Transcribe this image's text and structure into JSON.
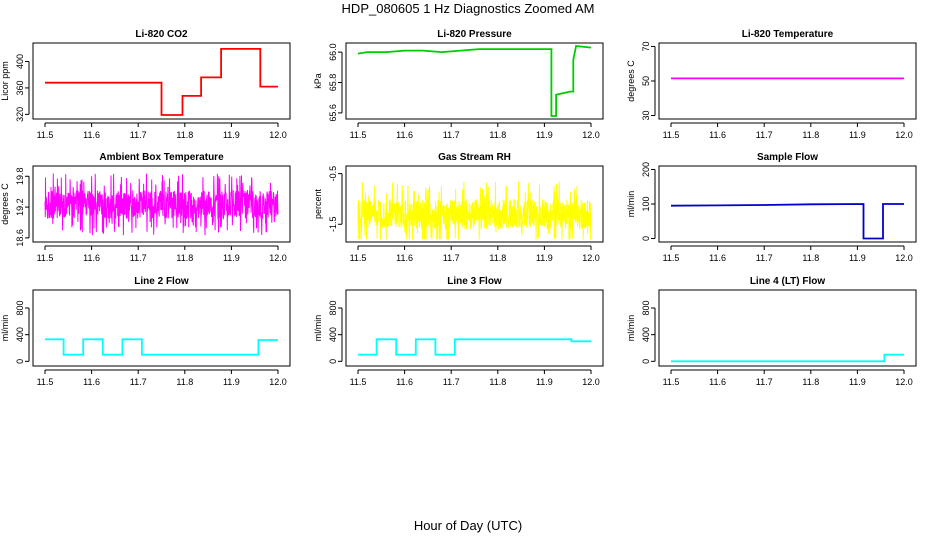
{
  "figure": {
    "title": "HDP_080605  1 Hz Diagnostics Zoomed AM",
    "xlabel": "Hour of Day (UTC)"
  },
  "chart_data": [
    {
      "type": "line",
      "title": "Li-820 CO2",
      "ylabel": "Licor ppm",
      "color": "#ff0000",
      "xlim": [
        11.5,
        12.0
      ],
      "xticks": [
        11.5,
        11.6,
        11.7,
        11.8,
        11.9,
        12.0
      ],
      "xtick_labels": [
        "11.5",
        "11.6",
        "11.7",
        "11.8",
        "11.9",
        "12.0"
      ],
      "ylim": [
        313,
        428
      ],
      "yticks": [
        320,
        360,
        400
      ],
      "ytick_labels": [
        "320",
        "360",
        "400"
      ],
      "x": [
        11.5,
        11.75,
        11.75,
        11.795,
        11.795,
        11.835,
        11.835,
        11.878,
        11.878,
        11.962,
        11.962,
        12.0
      ],
      "y": [
        368,
        368,
        319,
        319,
        348,
        348,
        376,
        376,
        419,
        419,
        362,
        362
      ]
    },
    {
      "type": "line",
      "title": "Li-820 Pressure",
      "ylabel": "kPa",
      "color": "#00cc00",
      "xlim": [
        11.5,
        12.0
      ],
      "xticks": [
        11.5,
        11.6,
        11.7,
        11.8,
        11.9,
        12.0
      ],
      "xtick_labels": [
        "11.5",
        "11.6",
        "11.7",
        "11.8",
        "11.9",
        "12.0"
      ],
      "ylim": [
        65.56,
        66.06
      ],
      "yticks": [
        65.6,
        65.8,
        66.0
      ],
      "ytick_labels": [
        "65.6",
        "65.8",
        "66.0"
      ],
      "x": [
        11.5,
        11.52,
        11.56,
        11.6,
        11.64,
        11.68,
        11.72,
        11.76,
        11.8,
        11.84,
        11.88,
        11.915,
        11.915,
        11.925,
        11.925,
        11.955,
        11.955,
        11.962,
        11.962,
        11.968,
        11.968,
        12.0
      ],
      "y": [
        65.99,
        66.0,
        66.0,
        66.01,
        66.01,
        66.0,
        66.01,
        66.02,
        66.02,
        66.02,
        66.02,
        66.02,
        65.58,
        65.58,
        65.72,
        65.74,
        65.74,
        65.74,
        65.95,
        66.04,
        66.04,
        66.03
      ]
    },
    {
      "type": "line",
      "title": "Li-820 Temperature",
      "ylabel": "degrees C",
      "color": "#ff00ff",
      "xlim": [
        11.5,
        12.0
      ],
      "xticks": [
        11.5,
        11.6,
        11.7,
        11.8,
        11.9,
        12.0
      ],
      "xtick_labels": [
        "11.5",
        "11.6",
        "11.7",
        "11.8",
        "11.9",
        "12.0"
      ],
      "ylim": [
        28,
        72
      ],
      "yticks": [
        30,
        50,
        70
      ],
      "ytick_labels": [
        "30",
        "50",
        "70"
      ],
      "x": [
        11.5,
        12.0
      ],
      "y": [
        51.5,
        51.5
      ]
    },
    {
      "type": "line",
      "title": "Ambient Box Temperature",
      "ylabel": "degrees C",
      "color": "#ff00ff",
      "xlim": [
        11.5,
        12.0
      ],
      "xticks": [
        11.5,
        11.6,
        11.7,
        11.8,
        11.9,
        12.0
      ],
      "xtick_labels": [
        "11.5",
        "11.6",
        "11.7",
        "11.8",
        "11.9",
        "12.0"
      ],
      "ylim": [
        18.52,
        20.0
      ],
      "yticks": [
        18.6,
        19.2,
        19.8
      ],
      "ytick_labels": [
        "18.6",
        "19.2",
        "19.8"
      ],
      "noise": {
        "center": 19.25,
        "low": 18.65,
        "high": 19.95,
        "spread": 0.28
      },
      "x": [
        11.5,
        12.0
      ],
      "y": [
        19.25,
        19.25
      ]
    },
    {
      "type": "line",
      "title": "Gas Stream RH",
      "ylabel": "percent",
      "color": "#ffff00",
      "xlim": [
        11.5,
        12.0
      ],
      "xticks": [
        11.5,
        11.6,
        11.7,
        11.8,
        11.9,
        12.0
      ],
      "xtick_labels": [
        "11.5",
        "11.6",
        "11.7",
        "11.8",
        "11.9",
        "12.0"
      ],
      "ylim": [
        -1.85,
        -0.35
      ],
      "yticks": [
        -0.5,
        -1.5
      ],
      "ytick_labels": [
        "-0.5",
        "-1.5"
      ],
      "noise": {
        "center": -1.3,
        "low": -1.8,
        "high": -0.45,
        "spread": 0.3
      },
      "x": [
        11.5,
        12.0
      ],
      "y": [
        -1.3,
        -1.3
      ]
    },
    {
      "type": "line",
      "title": "Sample Flow",
      "ylabel": "ml/min",
      "color": "#0000cc",
      "xlim": [
        11.5,
        12.0
      ],
      "xticks": [
        11.5,
        11.6,
        11.7,
        11.8,
        11.9,
        12.0
      ],
      "xtick_labels": [
        "11.5",
        "11.6",
        "11.7",
        "11.8",
        "11.9",
        "12.0"
      ],
      "ylim": [
        -10,
        210
      ],
      "yticks": [
        0,
        100,
        200
      ],
      "ytick_labels": [
        "0",
        "100",
        "200"
      ],
      "x": [
        11.5,
        11.6,
        11.7,
        11.8,
        11.913,
        11.913,
        11.955,
        11.955,
        12.0
      ],
      "y": [
        95,
        96,
        97,
        99,
        100,
        0,
        0,
        100,
        100
      ]
    },
    {
      "type": "line",
      "title": "Line 2 Flow",
      "ylabel": "ml/min",
      "color": "#00ffff",
      "xlim": [
        11.5,
        12.0
      ],
      "xticks": [
        11.5,
        11.6,
        11.7,
        11.8,
        11.9,
        12.0
      ],
      "xtick_labels": [
        "11.5",
        "11.6",
        "11.7",
        "11.8",
        "11.9",
        "12.0"
      ],
      "ylim": [
        -70,
        1070
      ],
      "yticks": [
        0,
        400,
        800
      ],
      "ytick_labels": [
        "0",
        "400",
        "800"
      ],
      "x": [
        11.5,
        11.54,
        11.54,
        11.582,
        11.582,
        11.624,
        11.624,
        11.666,
        11.666,
        11.708,
        11.708,
        11.958,
        11.958,
        12.0
      ],
      "y": [
        330,
        330,
        100,
        100,
        330,
        330,
        100,
        100,
        330,
        330,
        100,
        100,
        320,
        320
      ]
    },
    {
      "type": "line",
      "title": "Line 3 Flow",
      "ylabel": "ml/min",
      "color": "#00ffff",
      "xlim": [
        11.5,
        12.0
      ],
      "xticks": [
        11.5,
        11.6,
        11.7,
        11.8,
        11.9,
        12.0
      ],
      "xtick_labels": [
        "11.5",
        "11.6",
        "11.7",
        "11.8",
        "11.9",
        "12.0"
      ],
      "ylim": [
        -70,
        1070
      ],
      "yticks": [
        0,
        400,
        800
      ],
      "ytick_labels": [
        "0",
        "400",
        "800"
      ],
      "x": [
        11.5,
        11.54,
        11.54,
        11.582,
        11.582,
        11.624,
        11.624,
        11.666,
        11.666,
        11.708,
        11.708,
        11.958,
        11.958,
        12.0
      ],
      "y": [
        100,
        100,
        330,
        330,
        100,
        100,
        330,
        330,
        100,
        100,
        330,
        330,
        300,
        300
      ]
    },
    {
      "type": "line",
      "title": "Line 4 (LT) Flow",
      "ylabel": "ml/min",
      "color": "#00ffff",
      "xlim": [
        11.5,
        12.0
      ],
      "xticks": [
        11.5,
        11.6,
        11.7,
        11.8,
        11.9,
        12.0
      ],
      "xtick_labels": [
        "11.5",
        "11.6",
        "11.7",
        "11.8",
        "11.9",
        "12.0"
      ],
      "ylim": [
        -70,
        1070
      ],
      "yticks": [
        0,
        400,
        800
      ],
      "ytick_labels": [
        "0",
        "400",
        "800"
      ],
      "x": [
        11.5,
        11.958,
        11.958,
        12.0
      ],
      "y": [
        0,
        0,
        100,
        100
      ]
    }
  ]
}
